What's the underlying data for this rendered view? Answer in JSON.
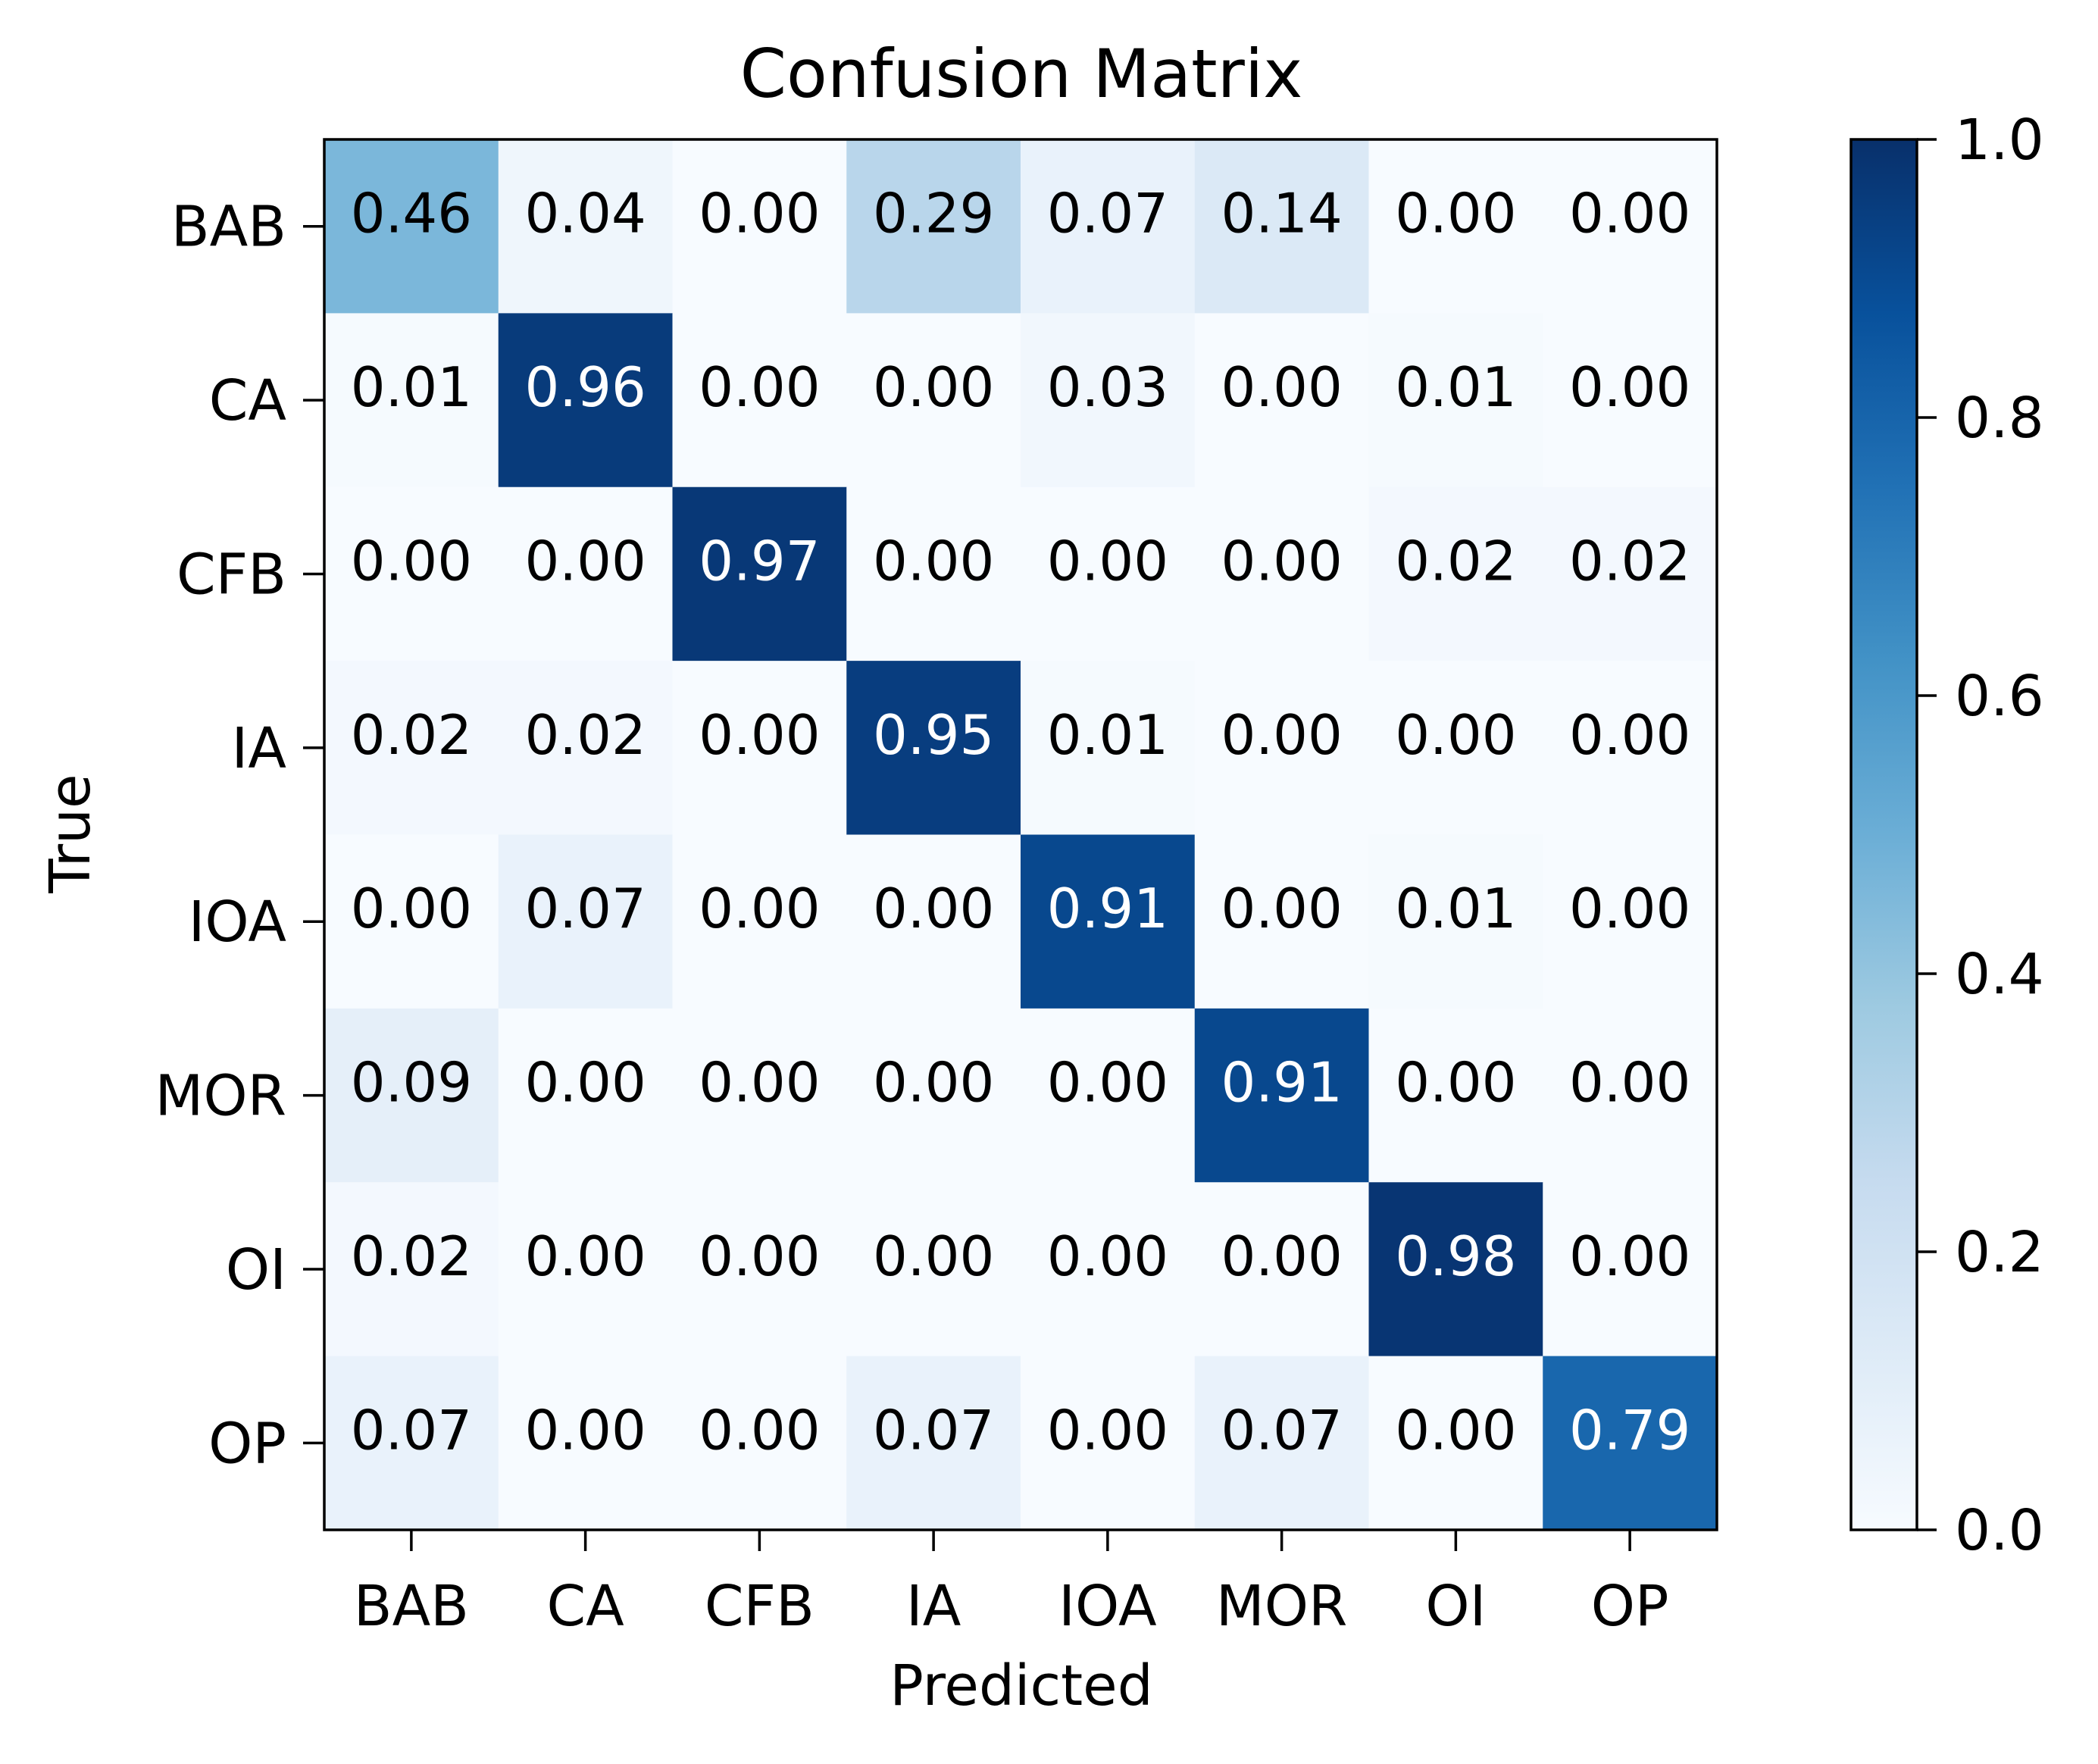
{
  "chart_data": {
    "type": "heatmap",
    "title": "Confusion Matrix",
    "xlabel": "Predicted",
    "ylabel": "True",
    "x_categories": [
      "BAB",
      "CA",
      "CFB",
      "IA",
      "IOA",
      "MOR",
      "OI",
      "OP"
    ],
    "y_categories": [
      "BAB",
      "CA",
      "CFB",
      "IA",
      "IOA",
      "MOR",
      "OI",
      "OP"
    ],
    "matrix": [
      [
        0.46,
        0.04,
        0.0,
        0.29,
        0.07,
        0.14,
        0.0,
        0.0
      ],
      [
        0.01,
        0.96,
        0.0,
        0.0,
        0.03,
        0.0,
        0.01,
        0.0
      ],
      [
        0.0,
        0.0,
        0.97,
        0.0,
        0.0,
        0.0,
        0.02,
        0.02
      ],
      [
        0.02,
        0.02,
        0.0,
        0.95,
        0.01,
        0.0,
        0.0,
        0.0
      ],
      [
        0.0,
        0.07,
        0.0,
        0.0,
        0.91,
        0.0,
        0.01,
        0.0
      ],
      [
        0.09,
        0.0,
        0.0,
        0.0,
        0.0,
        0.91,
        0.0,
        0.0
      ],
      [
        0.02,
        0.0,
        0.0,
        0.0,
        0.0,
        0.0,
        0.98,
        0.0
      ],
      [
        0.07,
        0.0,
        0.0,
        0.07,
        0.0,
        0.07,
        0.0,
        0.79
      ]
    ],
    "value_format": "0.00",
    "colormap": "Blues",
    "colormap_stops": [
      "#f7fbff",
      "#deebf7",
      "#c6dbef",
      "#9ecae1",
      "#6baed6",
      "#4292c6",
      "#2171b5",
      "#08519c",
      "#08306b"
    ],
    "colorbar": {
      "range": [
        0.0,
        1.0
      ],
      "ticks": [
        "0.0",
        "0.2",
        "0.4",
        "0.6",
        "0.8",
        "1.0"
      ]
    },
    "text_color_dark": "#000000",
    "text_color_light": "#ffffff",
    "text_light_threshold": 0.5
  }
}
